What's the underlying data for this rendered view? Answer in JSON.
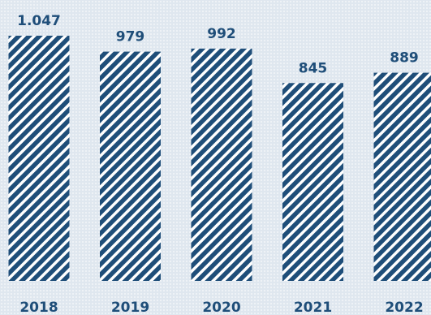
{
  "chart_data": {
    "type": "bar",
    "categories": [
      "2018",
      "2019",
      "2020",
      "2021",
      "2022"
    ],
    "values": [
      1047,
      979,
      992,
      845,
      889
    ],
    "value_labels": [
      "1.047",
      "979",
      "992",
      "845",
      "889"
    ],
    "title": "",
    "xlabel": "",
    "ylabel": "",
    "ylim": [
      0,
      1047
    ],
    "grid": false,
    "legend": "none"
  },
  "colors": {
    "bar": "#1f4e79",
    "bar_gap": "#ffffff",
    "label_text": "#1f4e79",
    "background": "#dfe7ef"
  }
}
